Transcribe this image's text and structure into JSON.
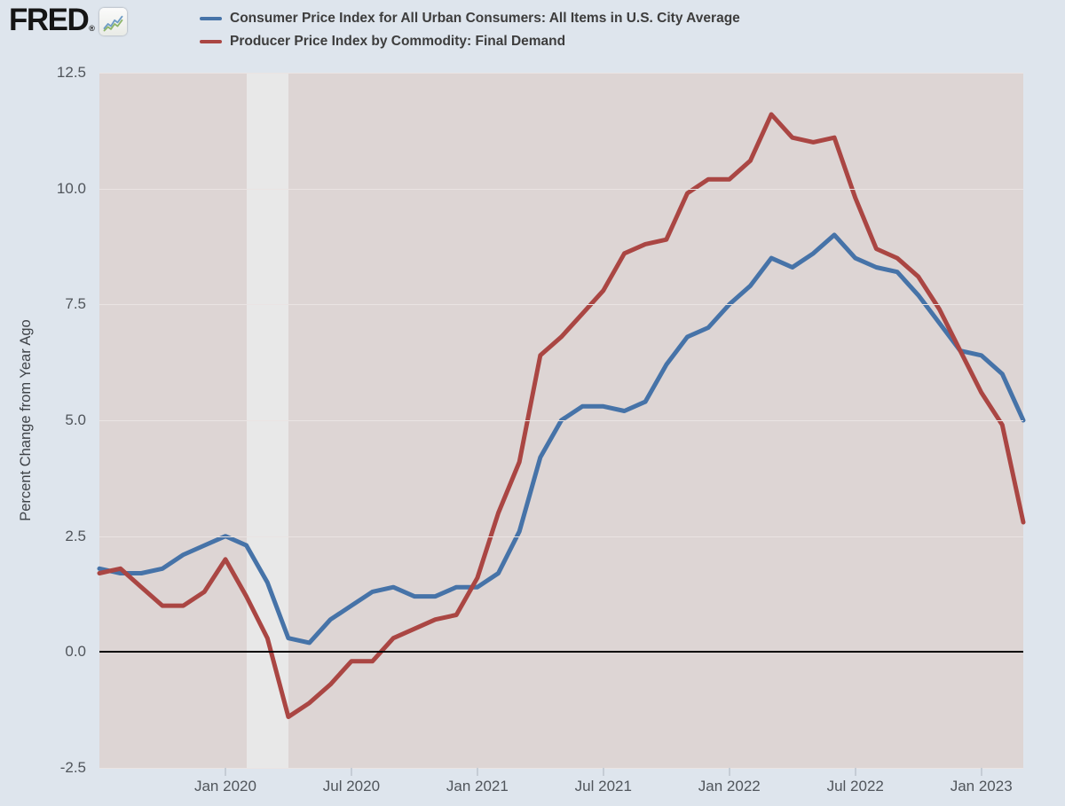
{
  "header": {
    "logo_text": "FRED",
    "logo_registered": "®",
    "legend": [
      {
        "label": "Consumer Price Index for All Urban Consumers: All Items in U.S. City Average",
        "color": "#4673a8"
      },
      {
        "label": "Producer Price Index by Commodity: Final Demand",
        "color": "#aa4643"
      }
    ]
  },
  "y_axis": {
    "title": "Percent Change from Year Ago",
    "ticks": [
      {
        "label": "12.5",
        "value": 12.5
      },
      {
        "label": "10.0",
        "value": 10.0
      },
      {
        "label": "7.5",
        "value": 7.5
      },
      {
        "label": "5.0",
        "value": 5.0
      },
      {
        "label": "2.5",
        "value": 2.5
      },
      {
        "label": "0.0",
        "value": 0.0
      },
      {
        "label": "-2.5",
        "value": -2.5
      }
    ]
  },
  "x_axis": {
    "ticks": [
      {
        "label": "Jan 2020",
        "month": "2020-01"
      },
      {
        "label": "Jul 2020",
        "month": "2020-07"
      },
      {
        "label": "Jan 2021",
        "month": "2021-01"
      },
      {
        "label": "Jul 2021",
        "month": "2021-07"
      },
      {
        "label": "Jan 2022",
        "month": "2022-01"
      },
      {
        "label": "Jul 2022",
        "month": "2022-07"
      },
      {
        "label": "Jan 2023",
        "month": "2023-01"
      }
    ]
  },
  "chart_data": {
    "type": "line",
    "x_unit": "month",
    "x": [
      "2019-07",
      "2019-08",
      "2019-09",
      "2019-10",
      "2019-11",
      "2019-12",
      "2020-01",
      "2020-02",
      "2020-03",
      "2020-04",
      "2020-05",
      "2020-06",
      "2020-07",
      "2020-08",
      "2020-09",
      "2020-10",
      "2020-11",
      "2020-12",
      "2021-01",
      "2021-02",
      "2021-03",
      "2021-04",
      "2021-05",
      "2021-06",
      "2021-07",
      "2021-08",
      "2021-09",
      "2021-10",
      "2021-11",
      "2021-12",
      "2022-01",
      "2022-02",
      "2022-03",
      "2022-04",
      "2022-05",
      "2022-06",
      "2022-07",
      "2022-08",
      "2022-09",
      "2022-10",
      "2022-11",
      "2022-12",
      "2023-01",
      "2023-02",
      "2023-03"
    ],
    "ylim": [
      -2.5,
      12.5
    ],
    "grid": true,
    "legend_position": "top",
    "zero_line": true,
    "recession_band": {
      "start": "2020-02",
      "end": "2020-04",
      "color": "#e8e8e8"
    },
    "series": [
      {
        "name": "Consumer Price Index for All Urban Consumers: All Items in U.S. City Average",
        "color": "#4673a8",
        "values": [
          1.8,
          1.7,
          1.7,
          1.8,
          2.1,
          2.3,
          2.5,
          2.3,
          1.5,
          0.3,
          0.2,
          0.7,
          1.0,
          1.3,
          1.4,
          1.2,
          1.2,
          1.4,
          1.4,
          1.7,
          2.6,
          4.2,
          5.0,
          5.3,
          5.3,
          5.2,
          5.4,
          6.2,
          6.8,
          7.0,
          7.5,
          7.9,
          8.5,
          8.3,
          8.6,
          9.0,
          8.5,
          8.3,
          8.2,
          7.7,
          7.1,
          6.5,
          6.4,
          6.0,
          5.0
        ]
      },
      {
        "name": "Producer Price Index by Commodity: Final Demand",
        "color": "#aa4643",
        "values": [
          1.7,
          1.8,
          1.4,
          1.0,
          1.0,
          1.3,
          2.0,
          1.2,
          0.3,
          -1.4,
          -1.1,
          -0.7,
          -0.2,
          -0.2,
          0.3,
          0.5,
          0.7,
          0.8,
          1.6,
          3.0,
          4.1,
          6.4,
          6.8,
          7.3,
          7.8,
          8.6,
          8.8,
          8.9,
          9.9,
          10.2,
          10.2,
          10.6,
          11.6,
          11.1,
          11.0,
          11.1,
          9.8,
          8.7,
          8.5,
          8.1,
          7.4,
          6.5,
          5.6,
          4.9,
          2.8
        ]
      }
    ]
  },
  "colors": {
    "page_bg": "#dee5ed",
    "plot_bg": "#ddd5d4",
    "gridline": "#eae4e3",
    "zero_line": "#030303",
    "axis_text": "#50555b"
  }
}
